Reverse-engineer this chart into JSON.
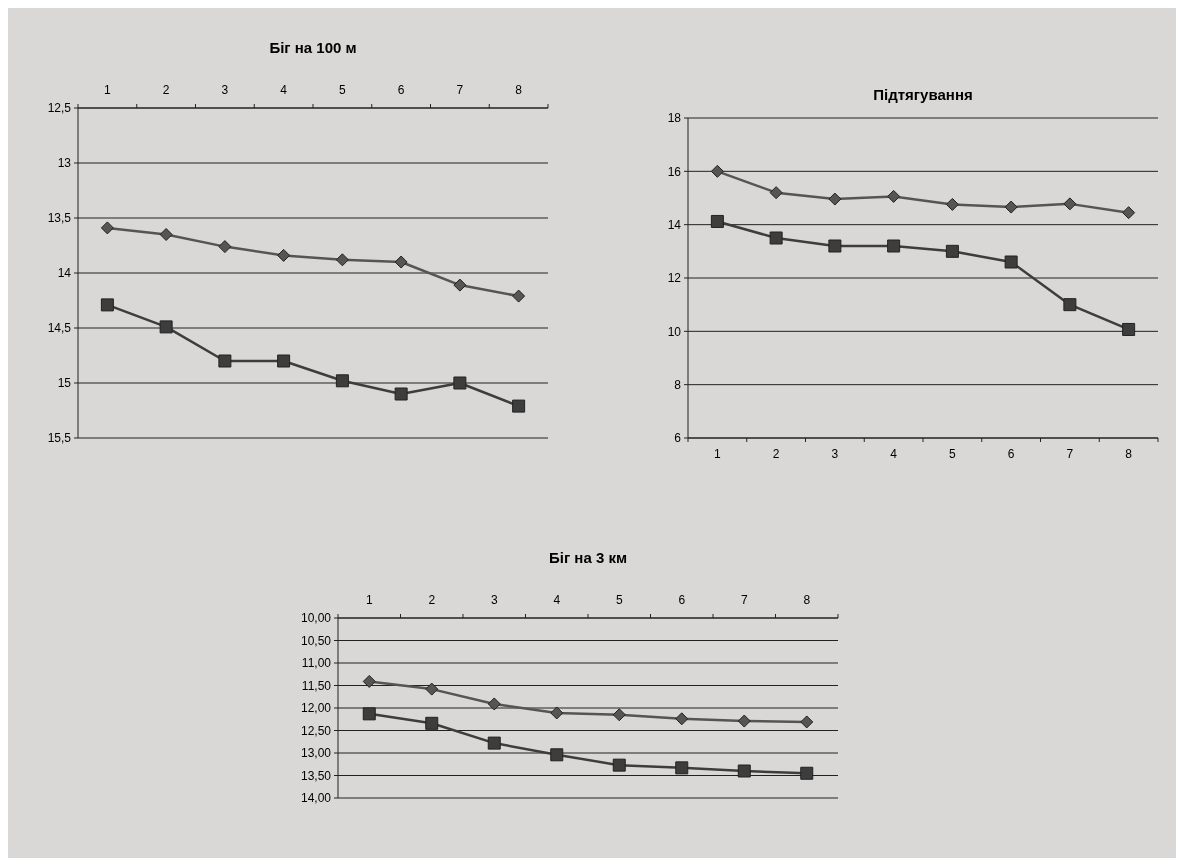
{
  "chart_data": [
    {
      "type": "line",
      "title": "Біг на 100 м",
      "categories": [
        "1",
        "2",
        "3",
        "4",
        "5",
        "6",
        "7",
        "8"
      ],
      "ylim": [
        15.5,
        12.5
      ],
      "yticks": [
        {
          "value": 12.5,
          "label": "12,5"
        },
        {
          "value": 13,
          "label": "13"
        },
        {
          "value": 13.5,
          "label": "13,5"
        },
        {
          "value": 14,
          "label": "14"
        },
        {
          "value": 14.5,
          "label": "14,5"
        },
        {
          "value": 15,
          "label": "15"
        },
        {
          "value": 15.5,
          "label": "15,5"
        }
      ],
      "grid": "y",
      "series": [
        {
          "color": "#555555",
          "marker": "diamond",
          "values": [
            13.59,
            13.65,
            13.76,
            13.84,
            13.88,
            13.9,
            14.11,
            14.21
          ]
        },
        {
          "color": "#3d3d3d",
          "marker": "square",
          "values": [
            14.29,
            14.49,
            14.8,
            14.8,
            14.98,
            15.1,
            15.0,
            15.21
          ]
        }
      ]
    },
    {
      "type": "line",
      "title": "Підтягування",
      "categories": [
        "1",
        "2",
        "3",
        "4",
        "5",
        "6",
        "7",
        "8"
      ],
      "ylim": [
        6,
        18
      ],
      "yticks": [
        6,
        8,
        10,
        12,
        14,
        16,
        18
      ],
      "grid": "y",
      "series": [
        {
          "color": "#555555",
          "marker": "diamond",
          "values": [
            16.0,
            15.2,
            14.96,
            15.06,
            14.76,
            14.66,
            14.78,
            14.45
          ]
        },
        {
          "color": "#3d3d3d",
          "marker": "square",
          "values": [
            14.12,
            13.5,
            13.2,
            13.2,
            13.0,
            12.6,
            11.0,
            10.07
          ]
        }
      ]
    },
    {
      "type": "line",
      "title": "Біг на 3 км",
      "categories": [
        "1",
        "2",
        "3",
        "4",
        "5",
        "6",
        "7",
        "8"
      ],
      "ylim": [
        14,
        10
      ],
      "yticks": [
        {
          "value": 10,
          "label": "10,00"
        },
        {
          "value": 10.5,
          "label": "10,50"
        },
        {
          "value": 11,
          "label": "11,00"
        },
        {
          "value": 11.5,
          "label": "11,50"
        },
        {
          "value": 12,
          "label": "12,00"
        },
        {
          "value": 12.5,
          "label": "12,50"
        },
        {
          "value": 13,
          "label": "13,00"
        },
        {
          "value": 13.5,
          "label": "13,50"
        },
        {
          "value": 14,
          "label": "14,00"
        }
      ],
      "grid": "y",
      "series": [
        {
          "color": "#555555",
          "marker": "diamond",
          "values": [
            11.41,
            11.58,
            11.91,
            12.11,
            12.15,
            12.24,
            12.29,
            12.31
          ]
        },
        {
          "color": "#3d3d3d",
          "marker": "square",
          "values": [
            12.13,
            12.34,
            12.78,
            13.04,
            13.27,
            13.33,
            13.4,
            13.45
          ]
        }
      ]
    }
  ]
}
